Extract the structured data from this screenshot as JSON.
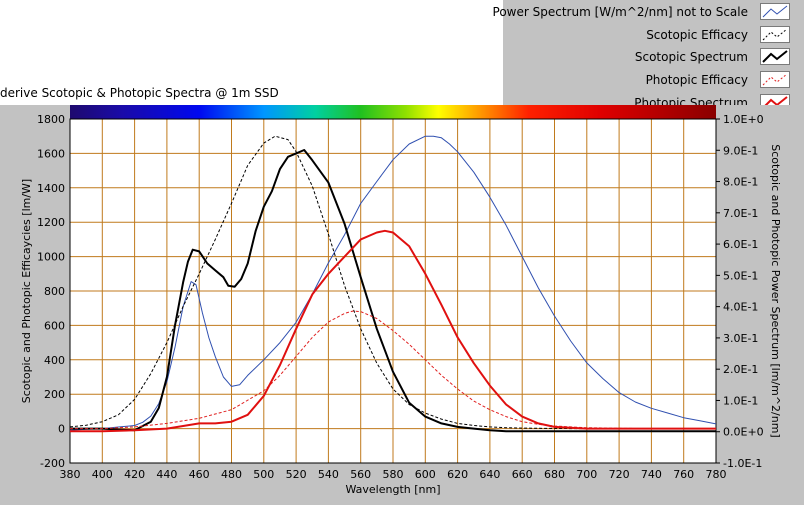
{
  "title": "derive Scotopic & Photopic Spectra @ 1m SSD",
  "legend": [
    {
      "label": "Power Spectrum [W/m^2/nm] not to Scale",
      "color": "#3050b0",
      "dash": false,
      "width": 1
    },
    {
      "label": "Scotopic Efficacy",
      "color": "#000000",
      "dash": true,
      "width": 1
    },
    {
      "label": "Scotopic Spectrum",
      "color": "#000000",
      "dash": false,
      "width": 2
    },
    {
      "label": "Photopic Efficacy",
      "color": "#e02020",
      "dash": true,
      "width": 1
    },
    {
      "label": "Photopic Spectrum",
      "color": "#e01010",
      "dash": false,
      "width": 2
    }
  ],
  "chart_data": {
    "type": "line",
    "title": "derive Scotopic & Photopic Spectra @ 1m SSD",
    "xlabel": "Wavelength [nm]",
    "ylabel": "Scotopic and Photopic Efficaycies [lm/W]",
    "y2label": "Scotopic and Photopic Power Spectrum [lm/m^2/nm]",
    "xlim": [
      380,
      780
    ],
    "ylim": [
      -200,
      1800
    ],
    "y2lim": [
      -0.1,
      1.0
    ],
    "grid": true,
    "grid_color": "#c07a1c",
    "xticks": [
      "380",
      "400",
      "420",
      "440",
      "460",
      "480",
      "500",
      "520",
      "540",
      "560",
      "580",
      "600",
      "620",
      "640",
      "660",
      "680",
      "700",
      "720",
      "740",
      "760",
      "780"
    ],
    "yticks": [
      "-200",
      "0",
      "200",
      "400",
      "600",
      "800",
      "1000",
      "1200",
      "1400",
      "1600",
      "1800"
    ],
    "y2ticks": [
      "-1.0E-1",
      "0.0E+0",
      "1.0E-1",
      "2.0E-1",
      "3.0E-1",
      "4.0E-1",
      "5.0E-1",
      "6.0E-1",
      "7.0E-1",
      "8.0E-1",
      "9.0E-1",
      "1.0E+0"
    ],
    "series": [
      {
        "name": "Power Spectrum [W/m^2/nm] not to Scale",
        "axis": "y2",
        "color": "#3050b0",
        "width": 1,
        "dash": false,
        "x": [
          380,
          390,
          400,
          410,
          420,
          425,
          430,
          435,
          440,
          445,
          450,
          455,
          458,
          462,
          466,
          470,
          475,
          480,
          485,
          490,
          500,
          510,
          520,
          530,
          540,
          550,
          560,
          570,
          580,
          590,
          600,
          605,
          610,
          615,
          620,
          630,
          640,
          650,
          660,
          670,
          680,
          690,
          700,
          710,
          720,
          730,
          740,
          750,
          760,
          770,
          780
        ],
        "y": [
          0.005,
          0.008,
          0.01,
          0.015,
          0.02,
          0.03,
          0.05,
          0.09,
          0.16,
          0.27,
          0.4,
          0.48,
          0.47,
          0.38,
          0.3,
          0.24,
          0.175,
          0.145,
          0.15,
          0.18,
          0.23,
          0.285,
          0.35,
          0.44,
          0.54,
          0.63,
          0.73,
          0.8,
          0.87,
          0.92,
          0.945,
          0.945,
          0.94,
          0.92,
          0.895,
          0.83,
          0.75,
          0.66,
          0.56,
          0.46,
          0.37,
          0.29,
          0.22,
          0.17,
          0.125,
          0.095,
          0.075,
          0.06,
          0.045,
          0.035,
          0.025
        ]
      },
      {
        "name": "Scotopic Efficacy",
        "axis": "y",
        "color": "#000000",
        "width": 1,
        "dash": true,
        "x": [
          380,
          390,
          400,
          410,
          420,
          430,
          440,
          450,
          460,
          470,
          480,
          490,
          500,
          507,
          515,
          520,
          530,
          540,
          550,
          560,
          570,
          580,
          590,
          600,
          610,
          620,
          630,
          640,
          650,
          660,
          670,
          680,
          690,
          700,
          720,
          740,
          760,
          780
        ],
        "y": [
          10,
          20,
          40,
          80,
          170,
          320,
          500,
          710,
          900,
          1100,
          1310,
          1530,
          1660,
          1700,
          1680,
          1610,
          1410,
          1130,
          830,
          580,
          380,
          230,
          140,
          90,
          55,
          30,
          18,
          10,
          5,
          3,
          2,
          1,
          0,
          0,
          0,
          0,
          0,
          0
        ]
      },
      {
        "name": "Scotopic Spectrum",
        "axis": "y",
        "color": "#000000",
        "width": 2,
        "dash": false,
        "x": [
          380,
          400,
          420,
          430,
          435,
          440,
          445,
          450,
          453,
          456,
          460,
          465,
          470,
          475,
          478,
          482,
          486,
          490,
          495,
          500,
          505,
          510,
          515,
          520,
          525,
          530,
          540,
          550,
          560,
          570,
          580,
          590,
          600,
          610,
          620,
          630,
          640,
          650,
          660,
          680,
          700,
          720,
          740,
          760,
          780
        ],
        "y": [
          0,
          0,
          -10,
          40,
          120,
          300,
          600,
          850,
          970,
          1040,
          1030,
          960,
          920,
          880,
          830,
          825,
          870,
          960,
          1150,
          1290,
          1380,
          1510,
          1580,
          1600,
          1620,
          1560,
          1430,
          1190,
          880,
          580,
          330,
          150,
          70,
          30,
          10,
          0,
          -10,
          -15,
          -15,
          -15,
          -15,
          -15,
          -15,
          -15,
          -15
        ]
      },
      {
        "name": "Photopic Efficacy",
        "axis": "y",
        "color": "#e02020",
        "width": 1,
        "dash": true,
        "x": [
          380,
          400,
          420,
          440,
          460,
          480,
          500,
          510,
          520,
          530,
          540,
          550,
          555,
          560,
          570,
          580,
          590,
          600,
          610,
          620,
          630,
          640,
          650,
          660,
          670,
          680,
          690,
          700,
          720,
          740,
          760,
          780
        ],
        "y": [
          0,
          0,
          10,
          30,
          60,
          110,
          220,
          310,
          420,
          530,
          620,
          670,
          683,
          680,
          640,
          570,
          490,
          400,
          310,
          230,
          160,
          110,
          70,
          40,
          25,
          15,
          10,
          5,
          2,
          0,
          0,
          0
        ]
      },
      {
        "name": "Photopic Spectrum",
        "axis": "y",
        "color": "#e01010",
        "width": 2,
        "dash": false,
        "x": [
          380,
          400,
          420,
          440,
          450,
          460,
          470,
          480,
          490,
          500,
          510,
          520,
          530,
          540,
          550,
          560,
          570,
          575,
          580,
          590,
          600,
          610,
          620,
          630,
          640,
          650,
          660,
          670,
          680,
          690,
          700,
          720,
          740,
          760,
          780
        ],
        "y": [
          -15,
          -15,
          -10,
          0,
          15,
          30,
          30,
          40,
          80,
          190,
          370,
          580,
          780,
          900,
          1000,
          1100,
          1140,
          1150,
          1140,
          1060,
          900,
          720,
          530,
          380,
          250,
          140,
          70,
          30,
          10,
          5,
          0,
          0,
          0,
          0,
          0
        ]
      }
    ]
  }
}
